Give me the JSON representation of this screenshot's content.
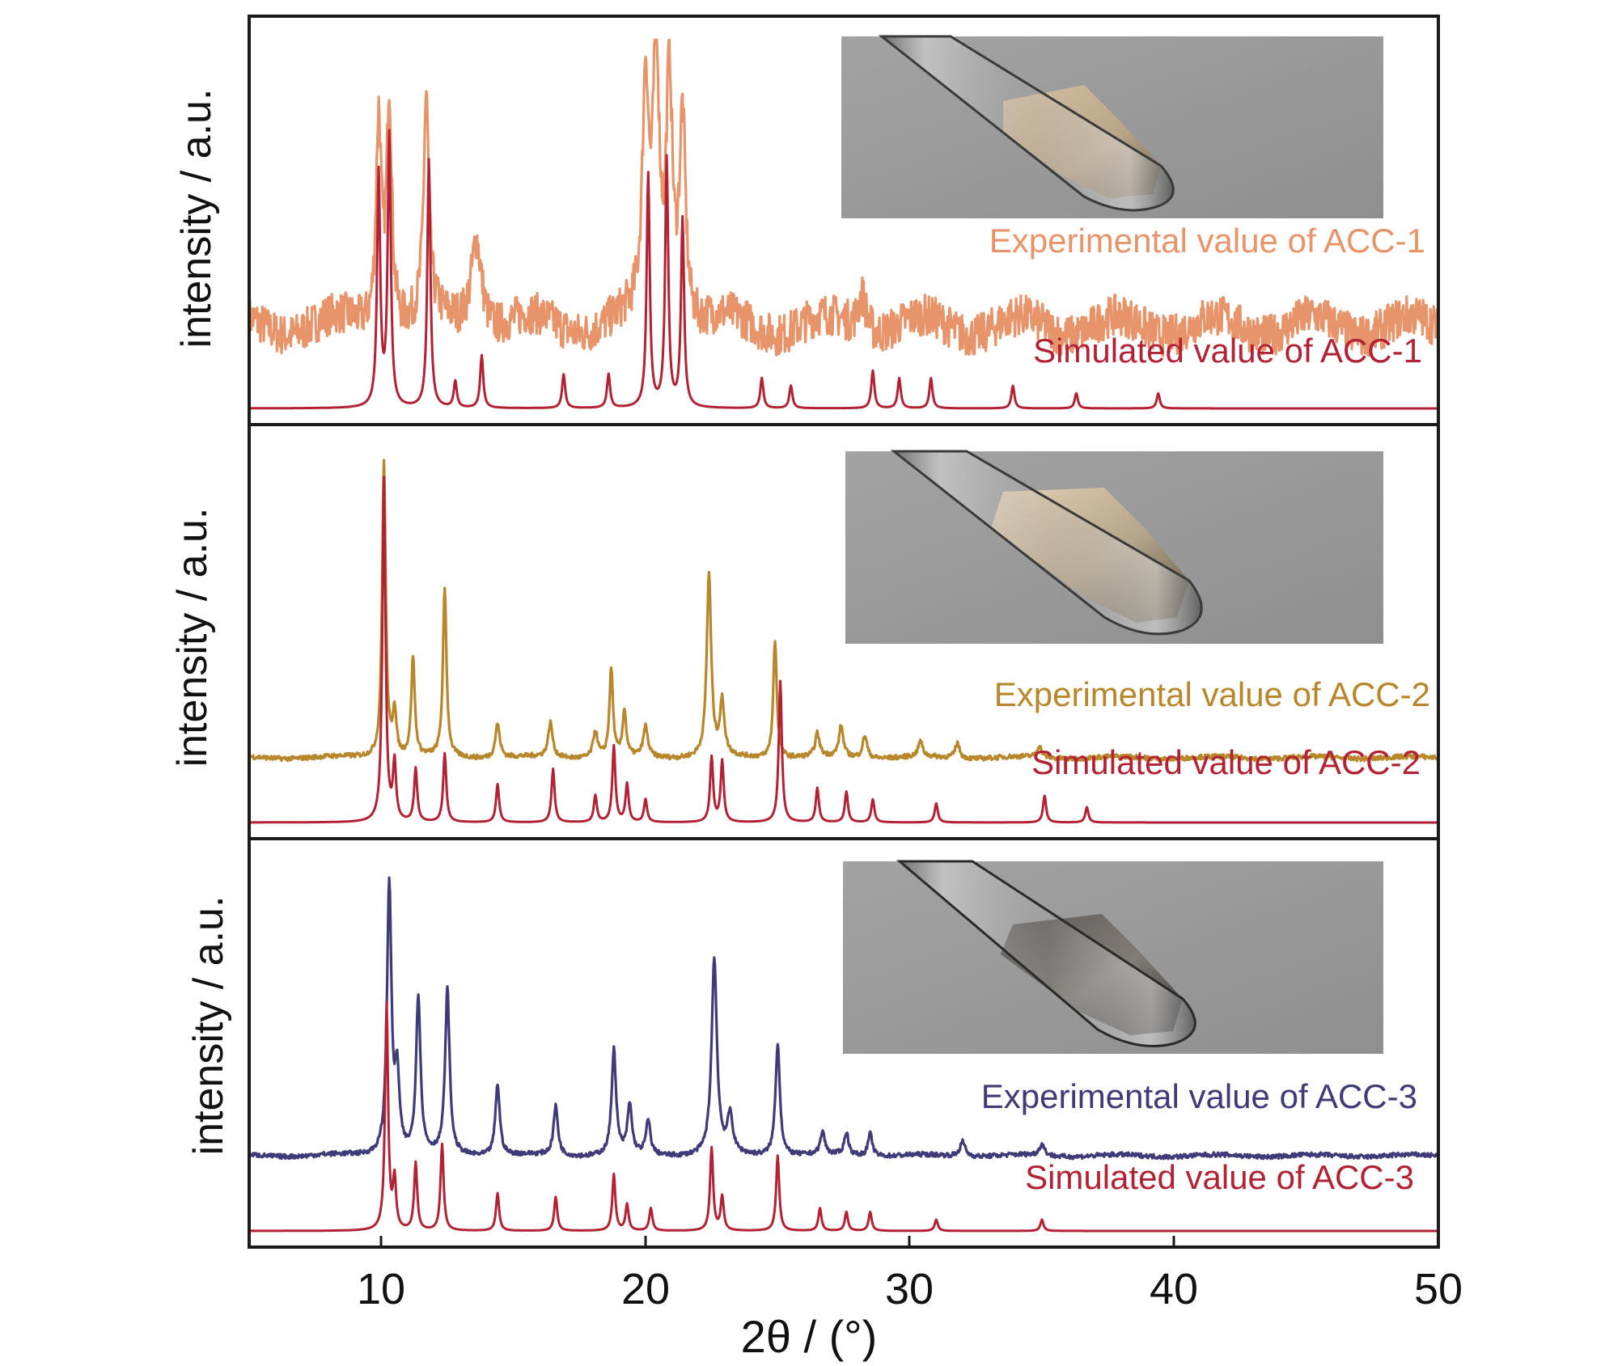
{
  "chart_data": [
    {
      "type": "line",
      "ylabel": "intensity / a.u.",
      "xlim": [
        5,
        50
      ],
      "inset_photo": "test-tube-pale-beige-powder",
      "series": [
        {
          "name": "Experimental value of ACC-1",
          "color": "#e8946b",
          "baseline": 0.22,
          "noise": 0.055,
          "peaks": [
            [
              9.9,
              0.56,
              0.12
            ],
            [
              10.3,
              0.62,
              0.12
            ],
            [
              11.7,
              0.58,
              0.12
            ],
            [
              13.6,
              0.25,
              0.25
            ],
            [
              20.0,
              0.62,
              0.14
            ],
            [
              20.4,
              0.72,
              0.14
            ],
            [
              20.9,
              0.66,
              0.14
            ],
            [
              21.4,
              0.56,
              0.14
            ],
            [
              28.2,
              0.1,
              0.2
            ]
          ]
        },
        {
          "name": "Simulated value of ACC-1",
          "color": "#b22234",
          "baseline": 0.0,
          "noise": 0.0,
          "peaks": [
            [
              9.9,
              0.62,
              0.07
            ],
            [
              10.3,
              0.72,
              0.07
            ],
            [
              11.8,
              0.66,
              0.07
            ],
            [
              12.8,
              0.07,
              0.07
            ],
            [
              13.8,
              0.14,
              0.07
            ],
            [
              16.9,
              0.09,
              0.07
            ],
            [
              18.6,
              0.09,
              0.07
            ],
            [
              20.1,
              0.62,
              0.07
            ],
            [
              20.8,
              0.66,
              0.07
            ],
            [
              21.4,
              0.5,
              0.07
            ],
            [
              24.4,
              0.08,
              0.07
            ],
            [
              25.5,
              0.06,
              0.07
            ],
            [
              28.6,
              0.1,
              0.07
            ],
            [
              29.6,
              0.08,
              0.07
            ],
            [
              30.8,
              0.08,
              0.07
            ],
            [
              33.9,
              0.06,
              0.07
            ],
            [
              36.3,
              0.04,
              0.07
            ],
            [
              39.4,
              0.04,
              0.07
            ]
          ]
        }
      ]
    },
    {
      "type": "line",
      "ylabel": "intensity / a.u.",
      "xlim": [
        5,
        50
      ],
      "inset_photo": "test-tube-beige-powder",
      "series": [
        {
          "name": "Experimental value of ACC-2",
          "color": "#b8862b",
          "baseline": 0.17,
          "noise": 0.006,
          "peaks": [
            [
              10.1,
              0.78,
              0.08
            ],
            [
              10.5,
              0.12,
              0.08
            ],
            [
              11.2,
              0.26,
              0.08
            ],
            [
              12.4,
              0.44,
              0.08
            ],
            [
              14.4,
              0.09,
              0.1
            ],
            [
              16.4,
              0.09,
              0.1
            ],
            [
              18.1,
              0.07,
              0.1
            ],
            [
              18.7,
              0.23,
              0.08
            ],
            [
              19.2,
              0.12,
              0.08
            ],
            [
              20.0,
              0.08,
              0.1
            ],
            [
              22.4,
              0.48,
              0.1
            ],
            [
              22.9,
              0.14,
              0.1
            ],
            [
              24.9,
              0.31,
              0.08
            ],
            [
              26.5,
              0.06,
              0.1
            ],
            [
              27.4,
              0.08,
              0.1
            ],
            [
              28.3,
              0.06,
              0.1
            ],
            [
              30.4,
              0.04,
              0.1
            ],
            [
              31.8,
              0.04,
              0.1
            ],
            [
              34.9,
              0.03,
              0.1
            ]
          ]
        },
        {
          "name": "Simulated value of ACC-2",
          "color": "#b22234",
          "baseline": 0.0,
          "noise": 0.0,
          "peaks": [
            [
              10.1,
              0.9,
              0.07
            ],
            [
              10.5,
              0.15,
              0.07
            ],
            [
              11.3,
              0.14,
              0.07
            ],
            [
              12.4,
              0.18,
              0.07
            ],
            [
              14.4,
              0.1,
              0.07
            ],
            [
              16.5,
              0.14,
              0.07
            ],
            [
              18.1,
              0.07,
              0.07
            ],
            [
              18.8,
              0.2,
              0.07
            ],
            [
              19.3,
              0.1,
              0.07
            ],
            [
              20.0,
              0.06,
              0.07
            ],
            [
              22.5,
              0.17,
              0.07
            ],
            [
              22.9,
              0.16,
              0.07
            ],
            [
              25.1,
              0.37,
              0.07
            ],
            [
              26.5,
              0.09,
              0.07
            ],
            [
              27.6,
              0.08,
              0.07
            ],
            [
              28.6,
              0.06,
              0.07
            ],
            [
              31.0,
              0.05,
              0.07
            ],
            [
              35.1,
              0.07,
              0.07
            ],
            [
              36.7,
              0.04,
              0.07
            ]
          ]
        }
      ]
    },
    {
      "type": "line",
      "ylabel": "intensity / a.u.",
      "xlim": [
        5,
        50
      ],
      "inset_photo": "test-tube-dark-grey-powder",
      "series": [
        {
          "name": "Experimental value of ACC-3",
          "color": "#3f3a78",
          "baseline": 0.2,
          "noise": 0.006,
          "peaks": [
            [
              10.3,
              0.72,
              0.1
            ],
            [
              10.6,
              0.2,
              0.1
            ],
            [
              11.4,
              0.42,
              0.1
            ],
            [
              12.5,
              0.44,
              0.1
            ],
            [
              14.4,
              0.19,
              0.1
            ],
            [
              16.6,
              0.13,
              0.1
            ],
            [
              18.8,
              0.28,
              0.1
            ],
            [
              19.4,
              0.13,
              0.1
            ],
            [
              20.1,
              0.09,
              0.1
            ],
            [
              22.6,
              0.52,
              0.12
            ],
            [
              23.2,
              0.1,
              0.12
            ],
            [
              25.0,
              0.3,
              0.1
            ],
            [
              26.7,
              0.06,
              0.1
            ],
            [
              27.6,
              0.06,
              0.1
            ],
            [
              28.5,
              0.06,
              0.1
            ],
            [
              32.0,
              0.04,
              0.12
            ],
            [
              35.0,
              0.03,
              0.12
            ]
          ]
        },
        {
          "name": "Simulated value of ACC-3",
          "color": "#b22234",
          "baseline": 0.0,
          "noise": 0.0,
          "peaks": [
            [
              10.2,
              0.6,
              0.07
            ],
            [
              10.5,
              0.13,
              0.07
            ],
            [
              11.3,
              0.18,
              0.07
            ],
            [
              12.3,
              0.23,
              0.07
            ],
            [
              14.4,
              0.1,
              0.07
            ],
            [
              16.6,
              0.09,
              0.07
            ],
            [
              18.8,
              0.15,
              0.07
            ],
            [
              19.3,
              0.07,
              0.07
            ],
            [
              20.2,
              0.06,
              0.07
            ],
            [
              22.5,
              0.22,
              0.07
            ],
            [
              22.9,
              0.09,
              0.07
            ],
            [
              25.0,
              0.2,
              0.07
            ],
            [
              26.6,
              0.06,
              0.07
            ],
            [
              27.6,
              0.05,
              0.07
            ],
            [
              28.5,
              0.05,
              0.07
            ],
            [
              31.0,
              0.03,
              0.07
            ],
            [
              35.0,
              0.03,
              0.07
            ]
          ]
        }
      ]
    }
  ],
  "x_axis": {
    "label": "2θ / (°)",
    "ticks": [
      10,
      20,
      30,
      40,
      50
    ]
  }
}
